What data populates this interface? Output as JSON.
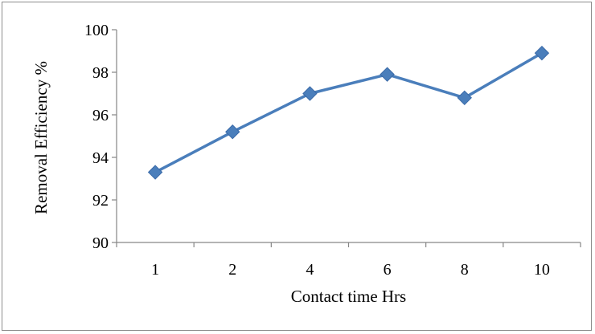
{
  "chart_data": {
    "type": "line",
    "title": "",
    "xlabel": "Contact time Hrs",
    "ylabel": "Removal Efficiency %",
    "categories": [
      "1",
      "2",
      "4",
      "6",
      "8",
      "10"
    ],
    "series": [
      {
        "values": [
          93.3,
          95.2,
          97.0,
          97.9,
          96.8,
          98.9
        ]
      }
    ],
    "ylim": [
      90,
      100
    ],
    "yticks": [
      "90",
      "92",
      "94",
      "96",
      "98",
      "100"
    ],
    "grid": false,
    "legend": "none",
    "colors": {
      "line": "#4a7ebb",
      "marker": "#4a7ebb",
      "axis": "#868686"
    }
  }
}
